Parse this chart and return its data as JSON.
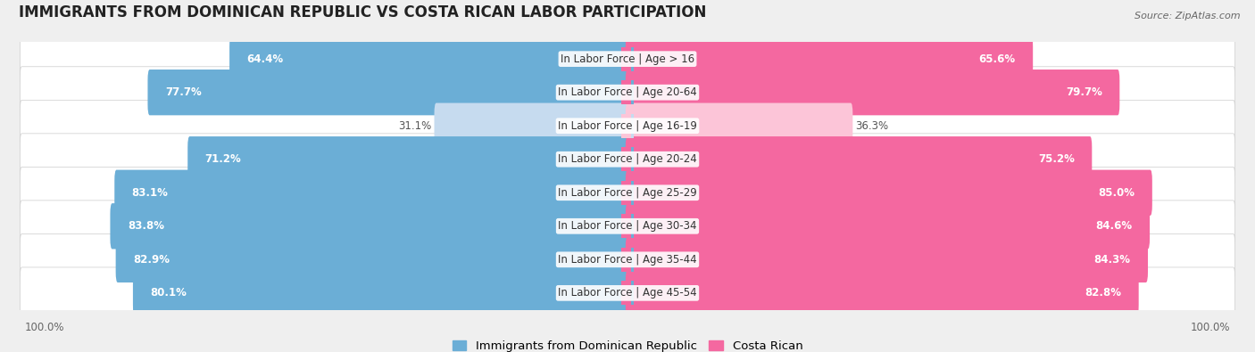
{
  "title": "IMMIGRANTS FROM DOMINICAN REPUBLIC VS COSTA RICAN LABOR PARTICIPATION",
  "source": "Source: ZipAtlas.com",
  "categories": [
    "In Labor Force | Age > 16",
    "In Labor Force | Age 20-64",
    "In Labor Force | Age 16-19",
    "In Labor Force | Age 20-24",
    "In Labor Force | Age 25-29",
    "In Labor Force | Age 30-34",
    "In Labor Force | Age 35-44",
    "In Labor Force | Age 45-54"
  ],
  "left_values": [
    64.4,
    77.7,
    31.1,
    71.2,
    83.1,
    83.8,
    82.9,
    80.1
  ],
  "right_values": [
    65.6,
    79.7,
    36.3,
    75.2,
    85.0,
    84.6,
    84.3,
    82.8
  ],
  "left_color": "#6baed6",
  "right_color": "#f468a0",
  "left_color_light": "#c6dbef",
  "right_color_light": "#fcc5d8",
  "left_label": "Immigrants from Dominican Republic",
  "right_label": "Costa Rican",
  "bar_height": 0.72,
  "background_color": "#efefef",
  "row_bg_even": "#f5f5f5",
  "row_bg_odd": "#fafafa",
  "max_val": 100.0,
  "title_fontsize": 12,
  "label_fontsize": 8.5,
  "value_fontsize": 8.5,
  "legend_fontsize": 9.5
}
